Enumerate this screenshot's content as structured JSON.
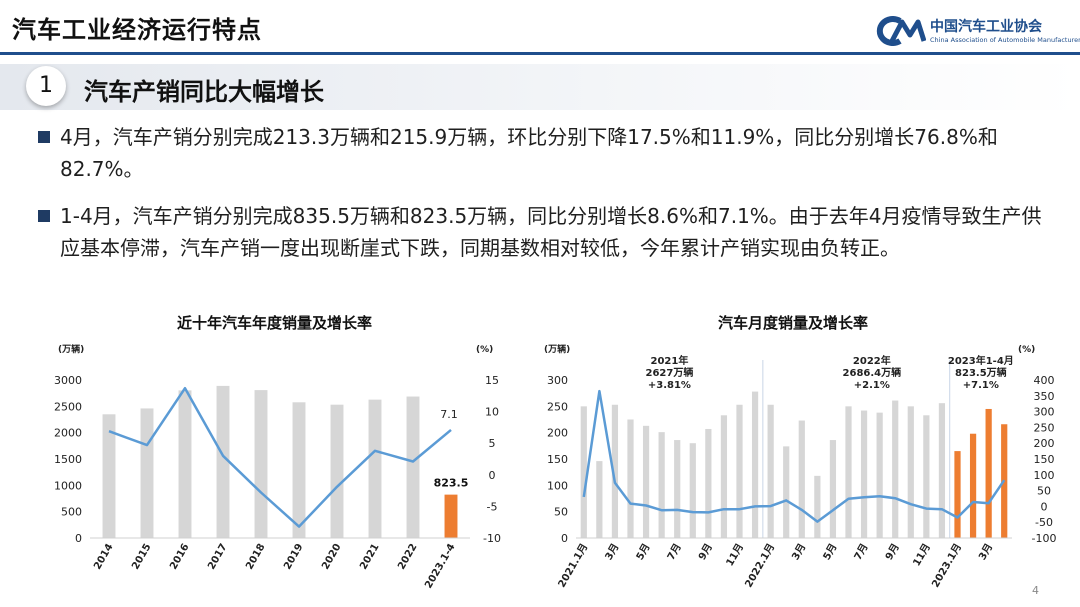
{
  "page": {
    "title": "汽车工业经济运行特点",
    "logo_cn": "中国汽车工业协会",
    "logo_en": "China Association of Automobile Manufacturers",
    "page_number": "4"
  },
  "section": {
    "number": "1",
    "title": "汽车产销同比大幅增长"
  },
  "bullets": [
    "4月，汽车产销分别完成213.3万辆和215.9万辆，环比分别下降17.5%和11.9%，同比分别增长76.8%和82.7%。",
    "1-4月，汽车产销分别完成835.5万辆和823.5万辆，同比分别增长8.6%和7.1%。由于去年4月疫情导致生产供应基本停滞，汽车产销一度出现断崖式下跌，同期基数相对较低，今年累计产销实现由负转正。"
  ],
  "colors": {
    "bar": "#d6d6d6",
    "bar_highlight": "#ed7d31",
    "line": "#5b9bd5",
    "accent": "#1f4e8c"
  },
  "chart_data": [
    {
      "type": "bar",
      "title": "近十年汽车年度销量及增长率",
      "left_unit": "(万辆)",
      "right_unit": "(%)",
      "categories": [
        "2014",
        "2015",
        "2016",
        "2017",
        "2018",
        "2019",
        "2020",
        "2021",
        "2022",
        "2023.1-4"
      ],
      "y_left": {
        "min": 0,
        "max": 3000,
        "ticks": [
          0,
          500,
          1000,
          1500,
          2000,
          2500,
          3000
        ]
      },
      "y_right": {
        "min": -10,
        "max": 15,
        "ticks": [
          -10,
          -5,
          0,
          5,
          10,
          15
        ]
      },
      "series": [
        {
          "kind": "bar",
          "axis": "left",
          "values": [
            2349,
            2460,
            2803,
            2888,
            2808,
            2577,
            2531,
            2627,
            2686,
            823.5
          ],
          "highlight_last": true
        },
        {
          "kind": "line",
          "axis": "right",
          "values": [
            6.9,
            4.7,
            13.7,
            3.0,
            -2.8,
            -8.2,
            -1.9,
            3.8,
            2.1,
            7.1
          ]
        }
      ],
      "data_labels": [
        {
          "text": "7.1",
          "series": 1,
          "index": 9
        },
        {
          "text": "823.5",
          "series": 0,
          "index": 9
        }
      ]
    },
    {
      "type": "bar",
      "title": "汽车月度销量及增长率",
      "left_unit": "(万辆)",
      "right_unit": "(%)",
      "categories": [
        "2021.1月",
        "2月",
        "3月",
        "4月",
        "5月",
        "6月",
        "7月",
        "8月",
        "9月",
        "10月",
        "11月",
        "12月",
        "2022.1月",
        "2月",
        "3月",
        "4月",
        "5月",
        "6月",
        "7月",
        "8月",
        "9月",
        "10月",
        "11月",
        "12月",
        "2023.1月",
        "2月",
        "3月",
        "4月"
      ],
      "x_tick_labels": [
        "2021.1月",
        "3月",
        "5月",
        "7月",
        "9月",
        "11月",
        "2022.1月",
        "3月",
        "5月",
        "7月",
        "9月",
        "11月",
        "2023.1月",
        "3月"
      ],
      "x_tick_indices": [
        0,
        2,
        4,
        6,
        8,
        10,
        12,
        14,
        16,
        18,
        20,
        22,
        24,
        26
      ],
      "y_left": {
        "min": 0,
        "max": 300,
        "ticks": [
          0,
          50,
          100,
          150,
          200,
          250,
          300
        ]
      },
      "y_right": {
        "min": -100,
        "max": 400,
        "ticks": [
          -100,
          -50,
          0,
          50,
          100,
          150,
          200,
          250,
          300,
          350,
          400
        ]
      },
      "series": [
        {
          "kind": "bar",
          "axis": "left",
          "values": [
            250,
            146,
            253,
            225,
            213,
            201,
            186,
            180,
            207,
            233,
            253,
            278,
            253,
            174,
            223,
            118,
            186,
            250,
            242,
            238,
            261,
            250,
            233,
            256,
            165,
            198,
            245,
            216
          ],
          "highlight_from": 24
        },
        {
          "kind": "line",
          "axis": "right",
          "values": [
            30,
            365,
            75,
            9,
            3,
            -12,
            -11,
            -18,
            -19,
            -9,
            -9,
            0,
            1,
            19,
            -11,
            -48,
            -12,
            24,
            29,
            32,
            26,
            7,
            -7,
            -9,
            -35,
            14,
            10,
            83
          ]
        }
      ],
      "annotations": [
        {
          "lines": [
            "2021年",
            "2627万辆",
            "+3.81%"
          ],
          "index": 5.5
        },
        {
          "lines": [
            "2022年",
            "2686.4万辆",
            "+2.1%"
          ],
          "index": 18.5
        },
        {
          "lines": [
            "2023年1-4月",
            "823.5万辆",
            "+7.1%"
          ],
          "index": 25.5
        }
      ],
      "separators_after_index": [
        11,
        23
      ]
    }
  ]
}
